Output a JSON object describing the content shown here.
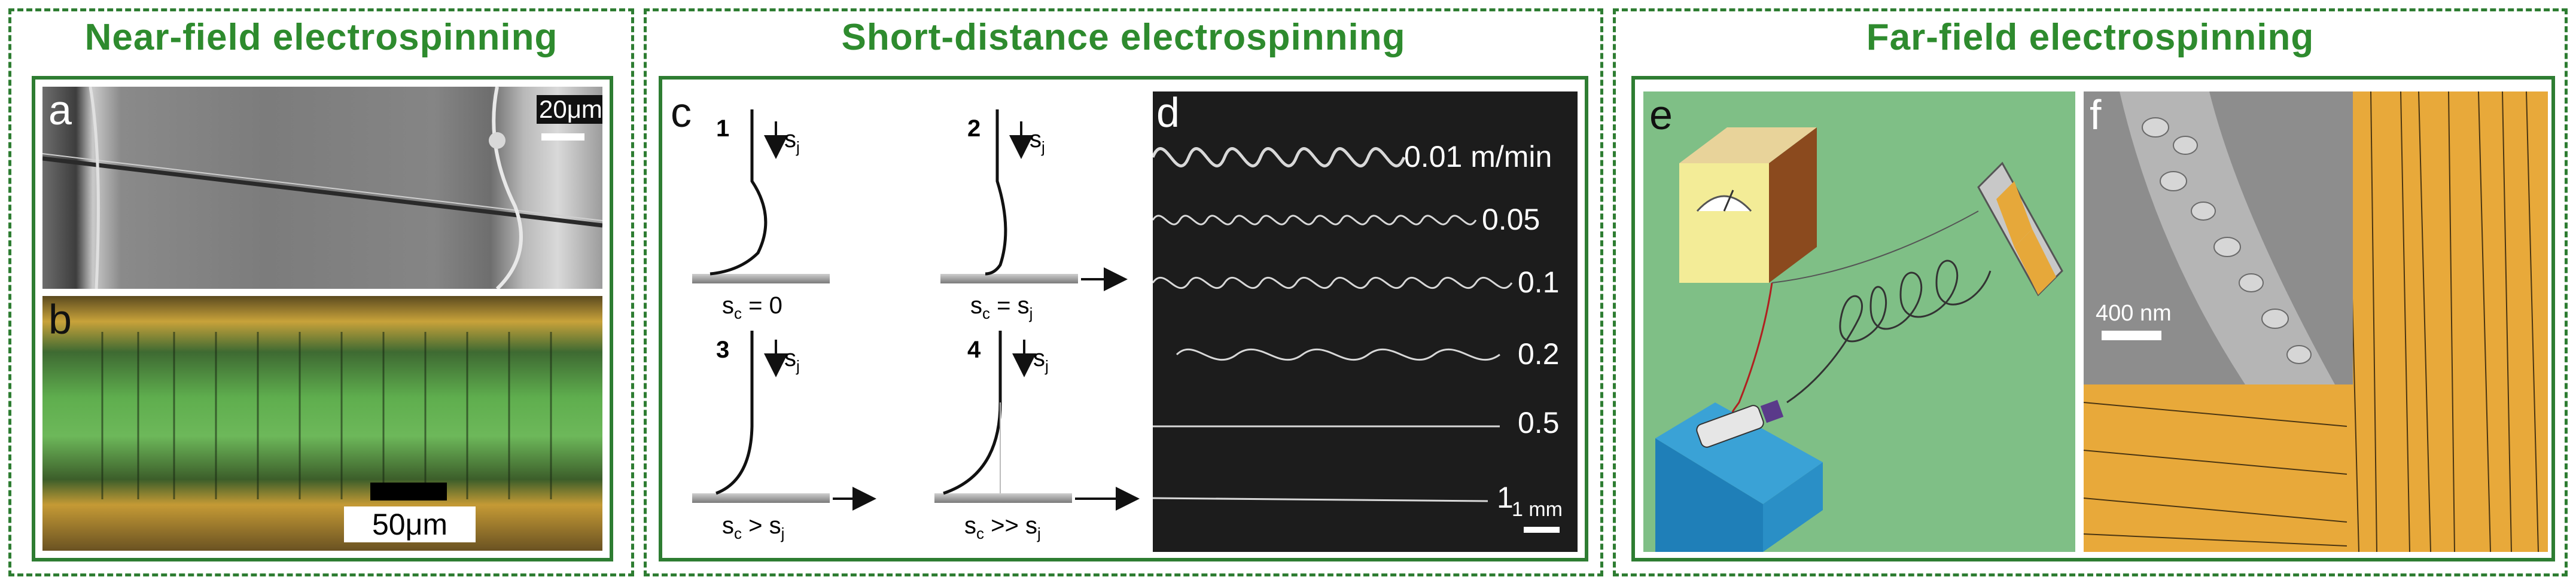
{
  "panels": [
    {
      "title": "Near-field electrospinning"
    },
    {
      "title": "Short-distance electrospinning"
    },
    {
      "title": "Far-field electrospinning"
    }
  ],
  "fig_a": {
    "letter": "a",
    "scale_label": "20μm"
  },
  "fig_b": {
    "letter": "b",
    "scale_label": "50μm"
  },
  "fig_c": {
    "letter": "c",
    "cases": [
      {
        "num": "1",
        "velocity_label": "s",
        "velocity_sub": "j",
        "condition_main": "s",
        "condition_sub": "c",
        "condition_rest": " = 0"
      },
      {
        "num": "2",
        "velocity_label": "s",
        "velocity_sub": "j",
        "condition_main": "s",
        "condition_sub": "c",
        "condition_rest": " = s",
        "condition_sub2": "j"
      },
      {
        "num": "3",
        "velocity_label": "s",
        "velocity_sub": "j",
        "condition_main": "s",
        "condition_sub": "c",
        "condition_rest": " > s",
        "condition_sub2": "j"
      },
      {
        "num": "4",
        "velocity_label": "s",
        "velocity_sub": "j",
        "condition_main": "s",
        "condition_sub": "c",
        "condition_rest": " >> s",
        "condition_sub2": "j"
      }
    ]
  },
  "fig_d": {
    "letter": "d",
    "speed_labels": [
      "0.01 m/min",
      "0.05",
      "0.1",
      "0.2",
      "0.5",
      "1"
    ],
    "scale_label": "1 mm"
  },
  "fig_e": {
    "letter": "e"
  },
  "fig_f": {
    "letter": "f",
    "scale_label": "400 nm"
  },
  "colors": {
    "frame_green": "#2e7d32",
    "title_green": "#2e8b2e",
    "fiber_gold": "#e8a93a",
    "setup_bg": "#7fbf86"
  }
}
